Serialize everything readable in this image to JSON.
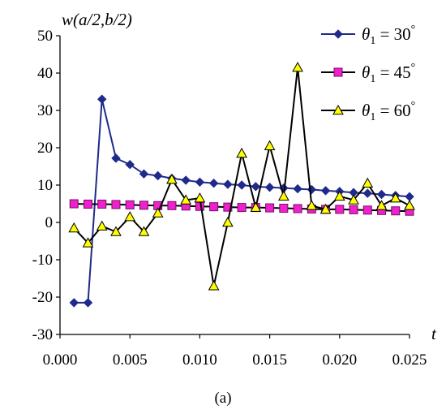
{
  "chart_data": {
    "type": "line",
    "ylabel": "w(a/2,b/2)",
    "xlabel": "t",
    "caption": "(a)",
    "xlim": [
      0,
      0.025
    ],
    "ylim": [
      -30,
      50
    ],
    "xticks": [
      "0.000",
      "0.005",
      "0.010",
      "0.015",
      "0.020",
      "0.025"
    ],
    "yticks": [
      "-30",
      "-20",
      "-10",
      "0",
      "10",
      "20",
      "30",
      "40",
      "50"
    ],
    "legend_position": "top-right",
    "x": [
      0.001,
      0.002,
      0.003,
      0.004,
      0.005,
      0.006,
      0.007,
      0.008,
      0.009,
      0.01,
      0.011,
      0.012,
      0.013,
      0.014,
      0.015,
      0.016,
      0.017,
      0.018,
      0.019,
      0.02,
      0.021,
      0.022,
      0.023,
      0.024,
      0.025
    ],
    "series": [
      {
        "name": "θ1 = 30°",
        "legend_base": "θ",
        "legend_sub": "1",
        "legend_rest": " = 30",
        "legend_deg": "°",
        "color": "#1f2a8a",
        "marker": "diamond",
        "marker_color": "#1f2a8a",
        "values": [
          -21.5,
          -21.5,
          33.0,
          17.2,
          15.5,
          13.0,
          12.5,
          11.8,
          11.3,
          10.8,
          10.5,
          10.2,
          10.0,
          9.6,
          9.4,
          9.2,
          9.0,
          8.8,
          8.5,
          8.3,
          8.0,
          7.8,
          7.5,
          7.2,
          6.9
        ]
      },
      {
        "name": "θ1 = 45°",
        "legend_base": "θ",
        "legend_sub": "1",
        "legend_rest": " = 45",
        "legend_deg": "°",
        "color": "#000000",
        "marker": "square",
        "marker_color": "#ee22cc",
        "values": [
          5.0,
          4.9,
          4.9,
          4.8,
          4.7,
          4.6,
          4.5,
          4.5,
          4.4,
          4.3,
          4.2,
          4.1,
          4.0,
          4.0,
          3.9,
          3.8,
          3.7,
          3.6,
          3.5,
          3.5,
          3.4,
          3.3,
          3.2,
          3.1,
          3.0
        ]
      },
      {
        "name": "θ1 = 60°",
        "legend_base": "θ",
        "legend_sub": "1",
        "legend_rest": " = 60",
        "legend_deg": "°",
        "color": "#000000",
        "marker": "triangle",
        "marker_color": "#ffff00",
        "values": [
          -1.5,
          -5.5,
          -1.0,
          -2.5,
          1.5,
          -2.5,
          2.5,
          11.5,
          6.0,
          6.5,
          -17.0,
          0.0,
          18.5,
          4.0,
          20.5,
          7.0,
          41.5,
          4.5,
          3.5,
          7.0,
          6.0,
          10.5,
          4.5,
          6.5,
          4.5
        ]
      }
    ]
  }
}
